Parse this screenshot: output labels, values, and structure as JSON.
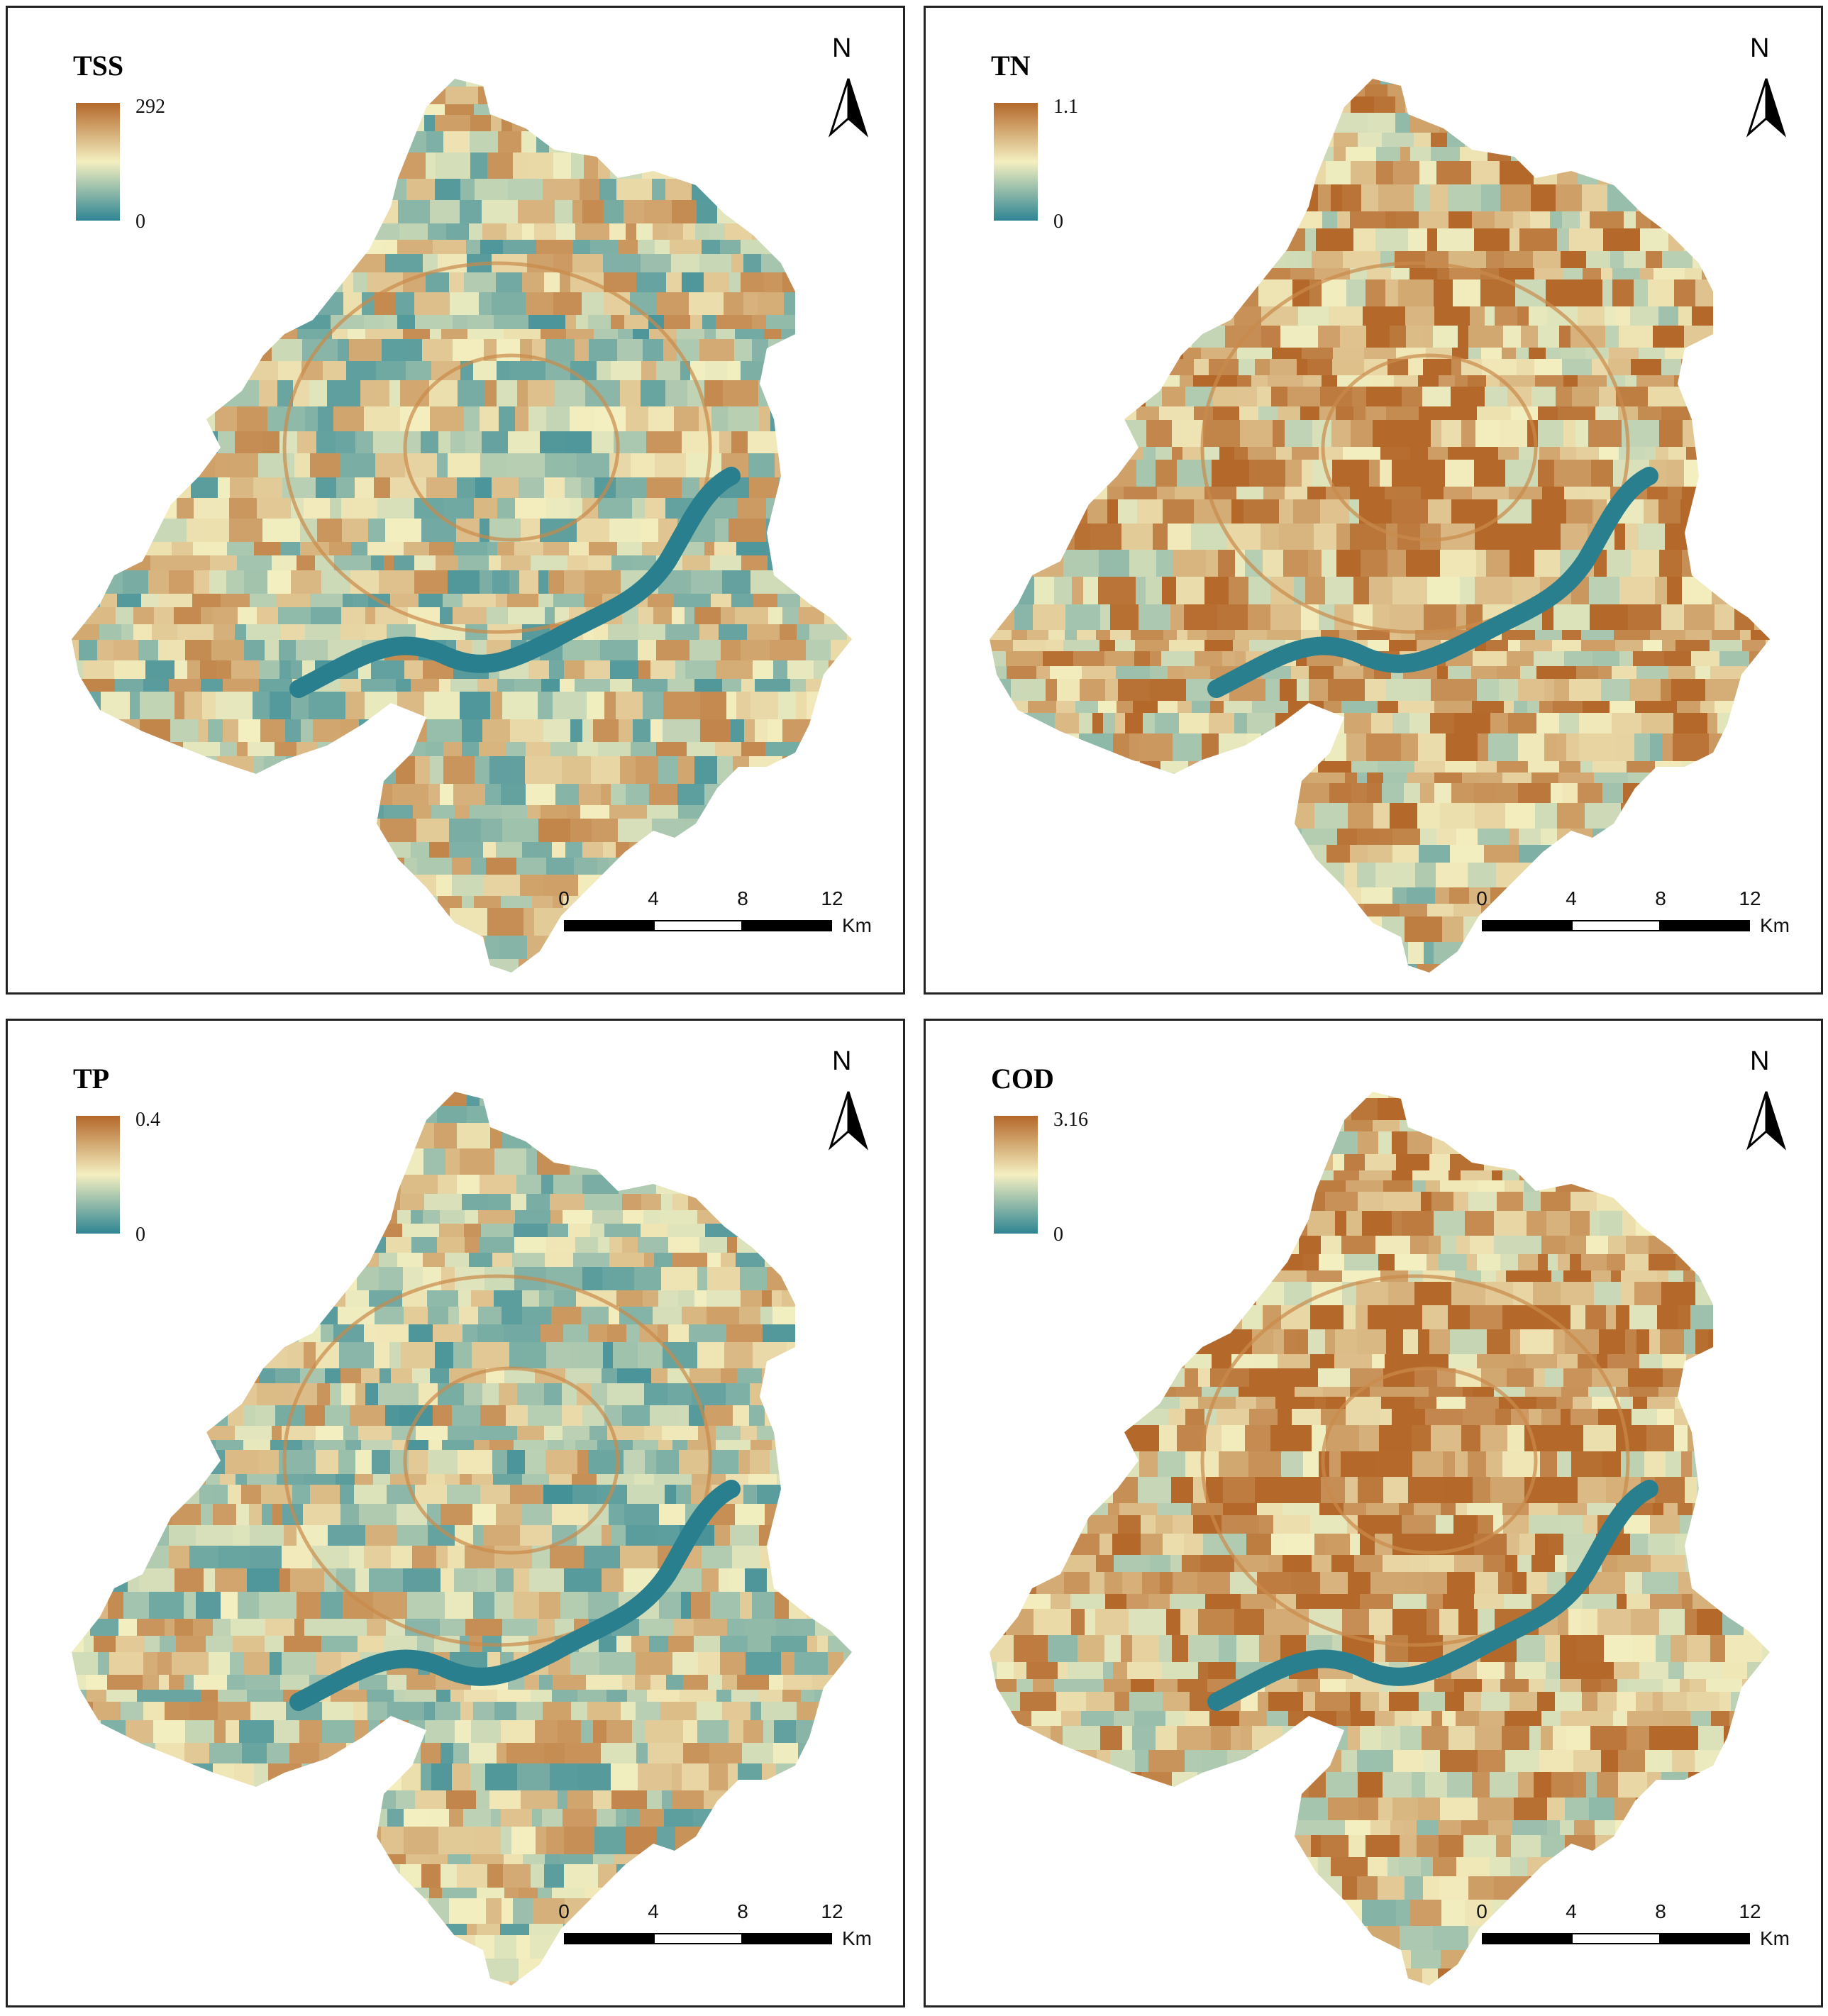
{
  "panels": [
    {
      "title": "TSS",
      "max": "292",
      "min": "0"
    },
    {
      "title": "TN",
      "max": "1.1",
      "min": "0"
    },
    {
      "title": "TP",
      "max": "0.4",
      "min": "0"
    },
    {
      "title": "COD",
      "max": "3.16",
      "min": "0"
    }
  ],
  "north_label": "N",
  "scale": {
    "ticks": [
      "0",
      "4",
      "8",
      "12"
    ],
    "unit": "Km"
  },
  "colors": {
    "low": "#2e8593",
    "mid": "#f4efc0",
    "high": "#b4682a",
    "frame": "#222222"
  }
}
